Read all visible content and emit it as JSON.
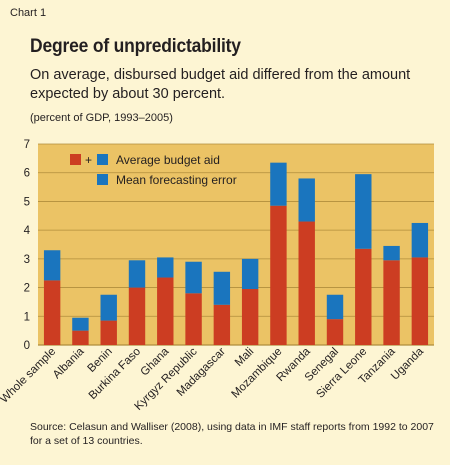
{
  "header": {
    "chart_number": "Chart 1",
    "title": "Degree of unpredictability",
    "subtitle": "On average, disbursed budget aid differed from the amount expected by about 30 percent.",
    "unit": "(percent of GDP, 1993–2005)"
  },
  "footer": {
    "source": "Source: Celasun and Walliser (2008), using data in IMF staff reports from 1992 to 2007 for a set of 13 countries."
  },
  "colors": {
    "background": "#fdf5d3",
    "plot_area": "#ebc365",
    "gridline": "#b08d3c",
    "budget_aid": "#cc3d22",
    "forecasting_error": "#1a75be"
  },
  "chart_data": {
    "type": "bar",
    "stacked": true,
    "categories": [
      "Whole sample",
      "Albania",
      "Benin",
      "Burkina Faso",
      "Ghana",
      "Kyrgyz Republic",
      "Madagascar",
      "Mali",
      "Mozambique",
      "Rwanda",
      "Senegal",
      "Sierra Leone",
      "Tanzania",
      "Uganda"
    ],
    "series": [
      {
        "name": "Average budget aid",
        "legend_label": "+",
        "color": "#cc3d22",
        "values": [
          2.25,
          0.5,
          0.85,
          2.0,
          2.35,
          1.8,
          1.4,
          1.95,
          4.85,
          4.3,
          0.9,
          3.35,
          2.95,
          3.05
        ]
      },
      {
        "name": "Mean forecasting error",
        "color": "#1a75be",
        "values": [
          1.05,
          0.45,
          0.9,
          0.95,
          0.7,
          1.1,
          1.15,
          1.05,
          1.5,
          1.5,
          0.85,
          2.6,
          0.5,
          1.2
        ]
      }
    ],
    "ylim": [
      0,
      7
    ],
    "yticks": [
      0,
      1,
      2,
      3,
      4,
      5,
      6,
      7
    ],
    "grid": true,
    "legend_position": "top-left",
    "xlabel": "",
    "ylabel": ""
  }
}
